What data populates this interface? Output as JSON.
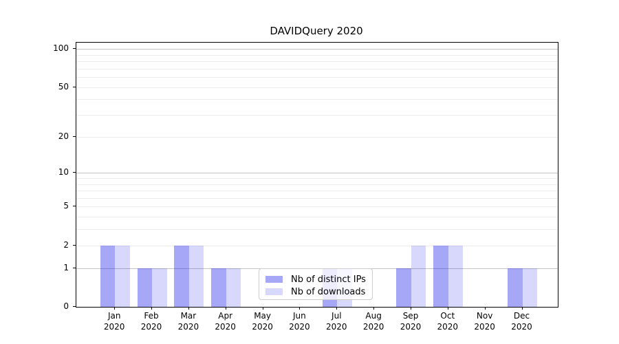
{
  "title": "DAVIDQuery 2020",
  "chart_data": {
    "type": "bar",
    "title": "DAVIDQuery 2020",
    "categories": [
      "Jan",
      "Feb",
      "Mar",
      "Apr",
      "May",
      "Jun",
      "Jul",
      "Aug",
      "Sep",
      "Oct",
      "Nov",
      "Dec"
    ],
    "category_year": "2020",
    "series": [
      {
        "name": "Nb of distinct IPs",
        "color": "rgba(10,10,235,0.36)",
        "values": [
          2,
          1,
          2,
          1,
          0,
          0,
          1,
          0,
          1,
          2,
          0,
          1
        ]
      },
      {
        "name": "Nb of downloads",
        "color": "rgba(10,10,235,0.16)",
        "values": [
          2,
          1,
          2,
          1,
          0,
          0,
          1,
          0,
          2,
          2,
          0,
          1
        ]
      }
    ],
    "yscale": "log1p",
    "ylim": [
      0,
      112
    ],
    "ytick_values": [
      0,
      1,
      2,
      5,
      10,
      20,
      50,
      100
    ],
    "ytick_labels": [
      "0",
      "1",
      "2",
      "5",
      "10",
      "20",
      "50",
      "100"
    ],
    "minor_grid_values": [
      2,
      3,
      4,
      5,
      6,
      7,
      8,
      9,
      20,
      30,
      40,
      50,
      60,
      70,
      80,
      90
    ],
    "major_grid_values": [
      1,
      10,
      100
    ],
    "grid": "horizontal",
    "legend_position": "lower center",
    "xlabel": "",
    "ylabel": ""
  },
  "colors": {
    "bar_distinct_ips": "rgba(10,10,235,0.36)",
    "bar_downloads": "rgba(10,10,235,0.16)",
    "major_grid": "#c4c4c4",
    "minor_grid": "#ececec",
    "axis": "#000000"
  }
}
